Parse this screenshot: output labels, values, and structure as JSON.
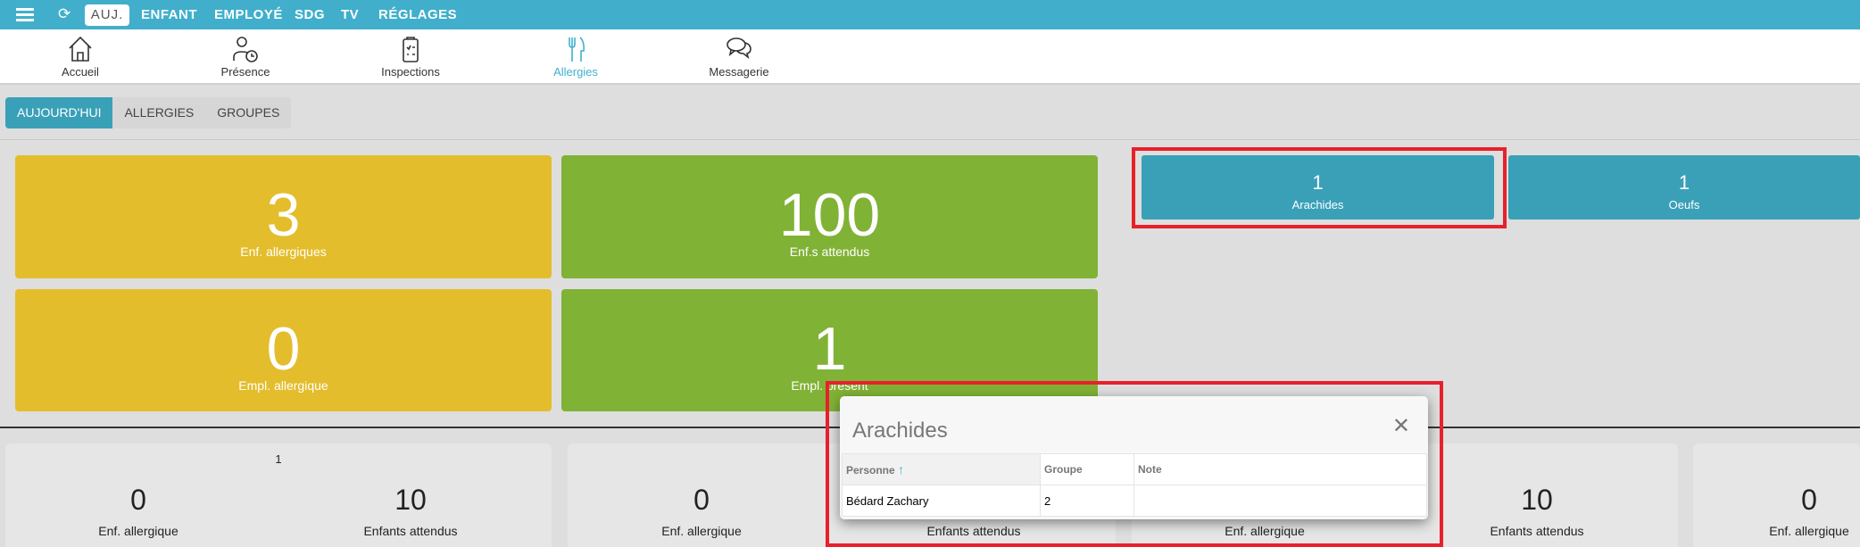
{
  "topbar": {
    "today": "AUJ.",
    "items": [
      "ENFANT",
      "EMPLOYÉ",
      "SDG",
      "TV",
      "RÉGLAGES"
    ]
  },
  "nav": [
    {
      "label": "Accueil",
      "icon": "home-icon"
    },
    {
      "label": "Présence",
      "icon": "person-clock-icon"
    },
    {
      "label": "Inspections",
      "icon": "clipboard-icon"
    },
    {
      "label": "Allergies",
      "icon": "fork-knife-icon",
      "active": true
    },
    {
      "label": "Messagerie",
      "icon": "chat-bubbles-icon"
    }
  ],
  "subtabs": [
    "AUJOURD'HUI",
    "ALLERGIES",
    "GROUPES"
  ],
  "stats": [
    {
      "value": "3",
      "label": "Enf. allergiques"
    },
    {
      "value": "100",
      "label": "Enf.s attendus"
    },
    {
      "value": "0",
      "label": "Empl. allergique"
    },
    {
      "value": "1",
      "label": "Empl. présent"
    }
  ],
  "allergens": [
    {
      "value": "1",
      "label": "Arachides"
    },
    {
      "value": "1",
      "label": "Oeufs"
    }
  ],
  "groups": [
    {
      "title": "1",
      "allergic": "0",
      "allergic_label": "Enf. allergique",
      "expected": "10",
      "expected_label": "Enfants attendus"
    },
    {
      "allergic": "0",
      "allergic_label": "Enf. allergique",
      "expected_label": "Enfants attendus"
    },
    {
      "allergic_label": "Enf. allergique",
      "expected": "10",
      "expected_label": "Enfants attendus"
    },
    {
      "allergic": "0",
      "allergic_label": "Enf. allergique"
    }
  ],
  "modal": {
    "title": "Arachides",
    "columns": [
      "Personne",
      "Groupe",
      "Note"
    ],
    "rows": [
      [
        "Bédard Zachary",
        "2",
        ""
      ]
    ]
  },
  "colors": {
    "primary": "#41afcb",
    "yellow": "#e4bd2c",
    "green": "#80b236",
    "teal": "#3aa0b8",
    "highlight": "#e8202a"
  }
}
